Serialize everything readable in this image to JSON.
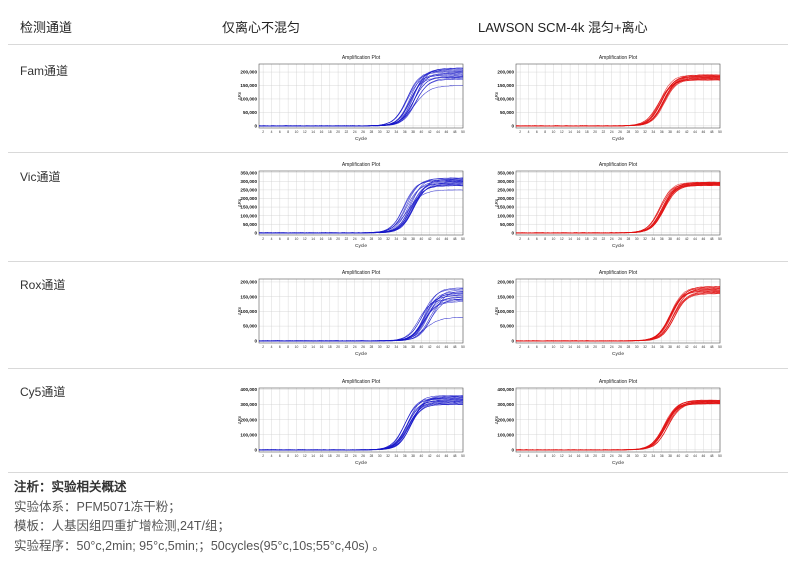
{
  "header": {
    "channel_col": "检测通道",
    "col_left": "仅离心不混匀",
    "col_right": "LAWSON SCM-4k 混匀+离心"
  },
  "colors": {
    "left_series": "#1414c8",
    "right_series": "#e01010"
  },
  "rows": [
    {
      "label": "Fam通道",
      "yticks": [
        0,
        50000,
        100000,
        150000,
        200000
      ],
      "ymax": 230000,
      "left": {
        "plateau_min": 170000,
        "plateau_max": 215000,
        "outlier": 150000,
        "midpoint": 37.5,
        "spread": 1.6
      },
      "right": {
        "plateau_min": 170000,
        "plateau_max": 190000,
        "outlier": null,
        "midpoint": 36.0,
        "spread": 0.9
      }
    },
    {
      "label": "Vic通道",
      "yticks": [
        0,
        50000,
        100000,
        150000,
        200000,
        250000,
        300000,
        350000
      ],
      "ymax": 360000,
      "left": {
        "plateau_min": 270000,
        "plateau_max": 320000,
        "outlier": 250000,
        "midpoint": 37.0,
        "spread": 1.6
      },
      "right": {
        "plateau_min": 275000,
        "plateau_max": 295000,
        "outlier": null,
        "midpoint": 36.0,
        "spread": 0.9
      }
    },
    {
      "label": "Rox通道",
      "yticks": [
        0,
        50000,
        100000,
        150000,
        200000
      ],
      "ymax": 210000,
      "left": {
        "plateau_min": 130000,
        "plateau_max": 180000,
        "outlier": 80000,
        "midpoint": 41.0,
        "spread": 2.2
      },
      "right": {
        "plateau_min": 160000,
        "plateau_max": 185000,
        "outlier": null,
        "midpoint": 38.5,
        "spread": 0.9
      }
    },
    {
      "label": "Cy5通道",
      "yticks": [
        0,
        100000,
        200000,
        300000,
        400000
      ],
      "ymax": 410000,
      "left": {
        "plateau_min": 300000,
        "plateau_max": 360000,
        "outlier": null,
        "midpoint": 37.0,
        "spread": 1.5
      },
      "right": {
        "plateau_min": 305000,
        "plateau_max": 330000,
        "outlier": null,
        "midpoint": 37.0,
        "spread": 0.8
      }
    }
  ],
  "chart_data": {
    "type": "line",
    "title": "Amplification Plot",
    "xlabel": "Cycle",
    "ylabel": "ΔRn",
    "xlim": [
      1,
      50
    ],
    "xticks": [
      2,
      4,
      6,
      8,
      10,
      12,
      14,
      16,
      18,
      20,
      22,
      24,
      26,
      28,
      30,
      32,
      34,
      36,
      38,
      40,
      42,
      44,
      46,
      48,
      50
    ],
    "grid": true,
    "curves_per_panel": 16
  },
  "notes": {
    "title": "注析：实验相关概述",
    "line1": "实验体系：PFM5071冻干粉；",
    "line2": "模板：人基因组四重扩增检测,24T/组；",
    "line3": "实验程序：50°c,2min; 95°c,5min;；50cycles(95°c,10s;55°c,40s) 。"
  }
}
